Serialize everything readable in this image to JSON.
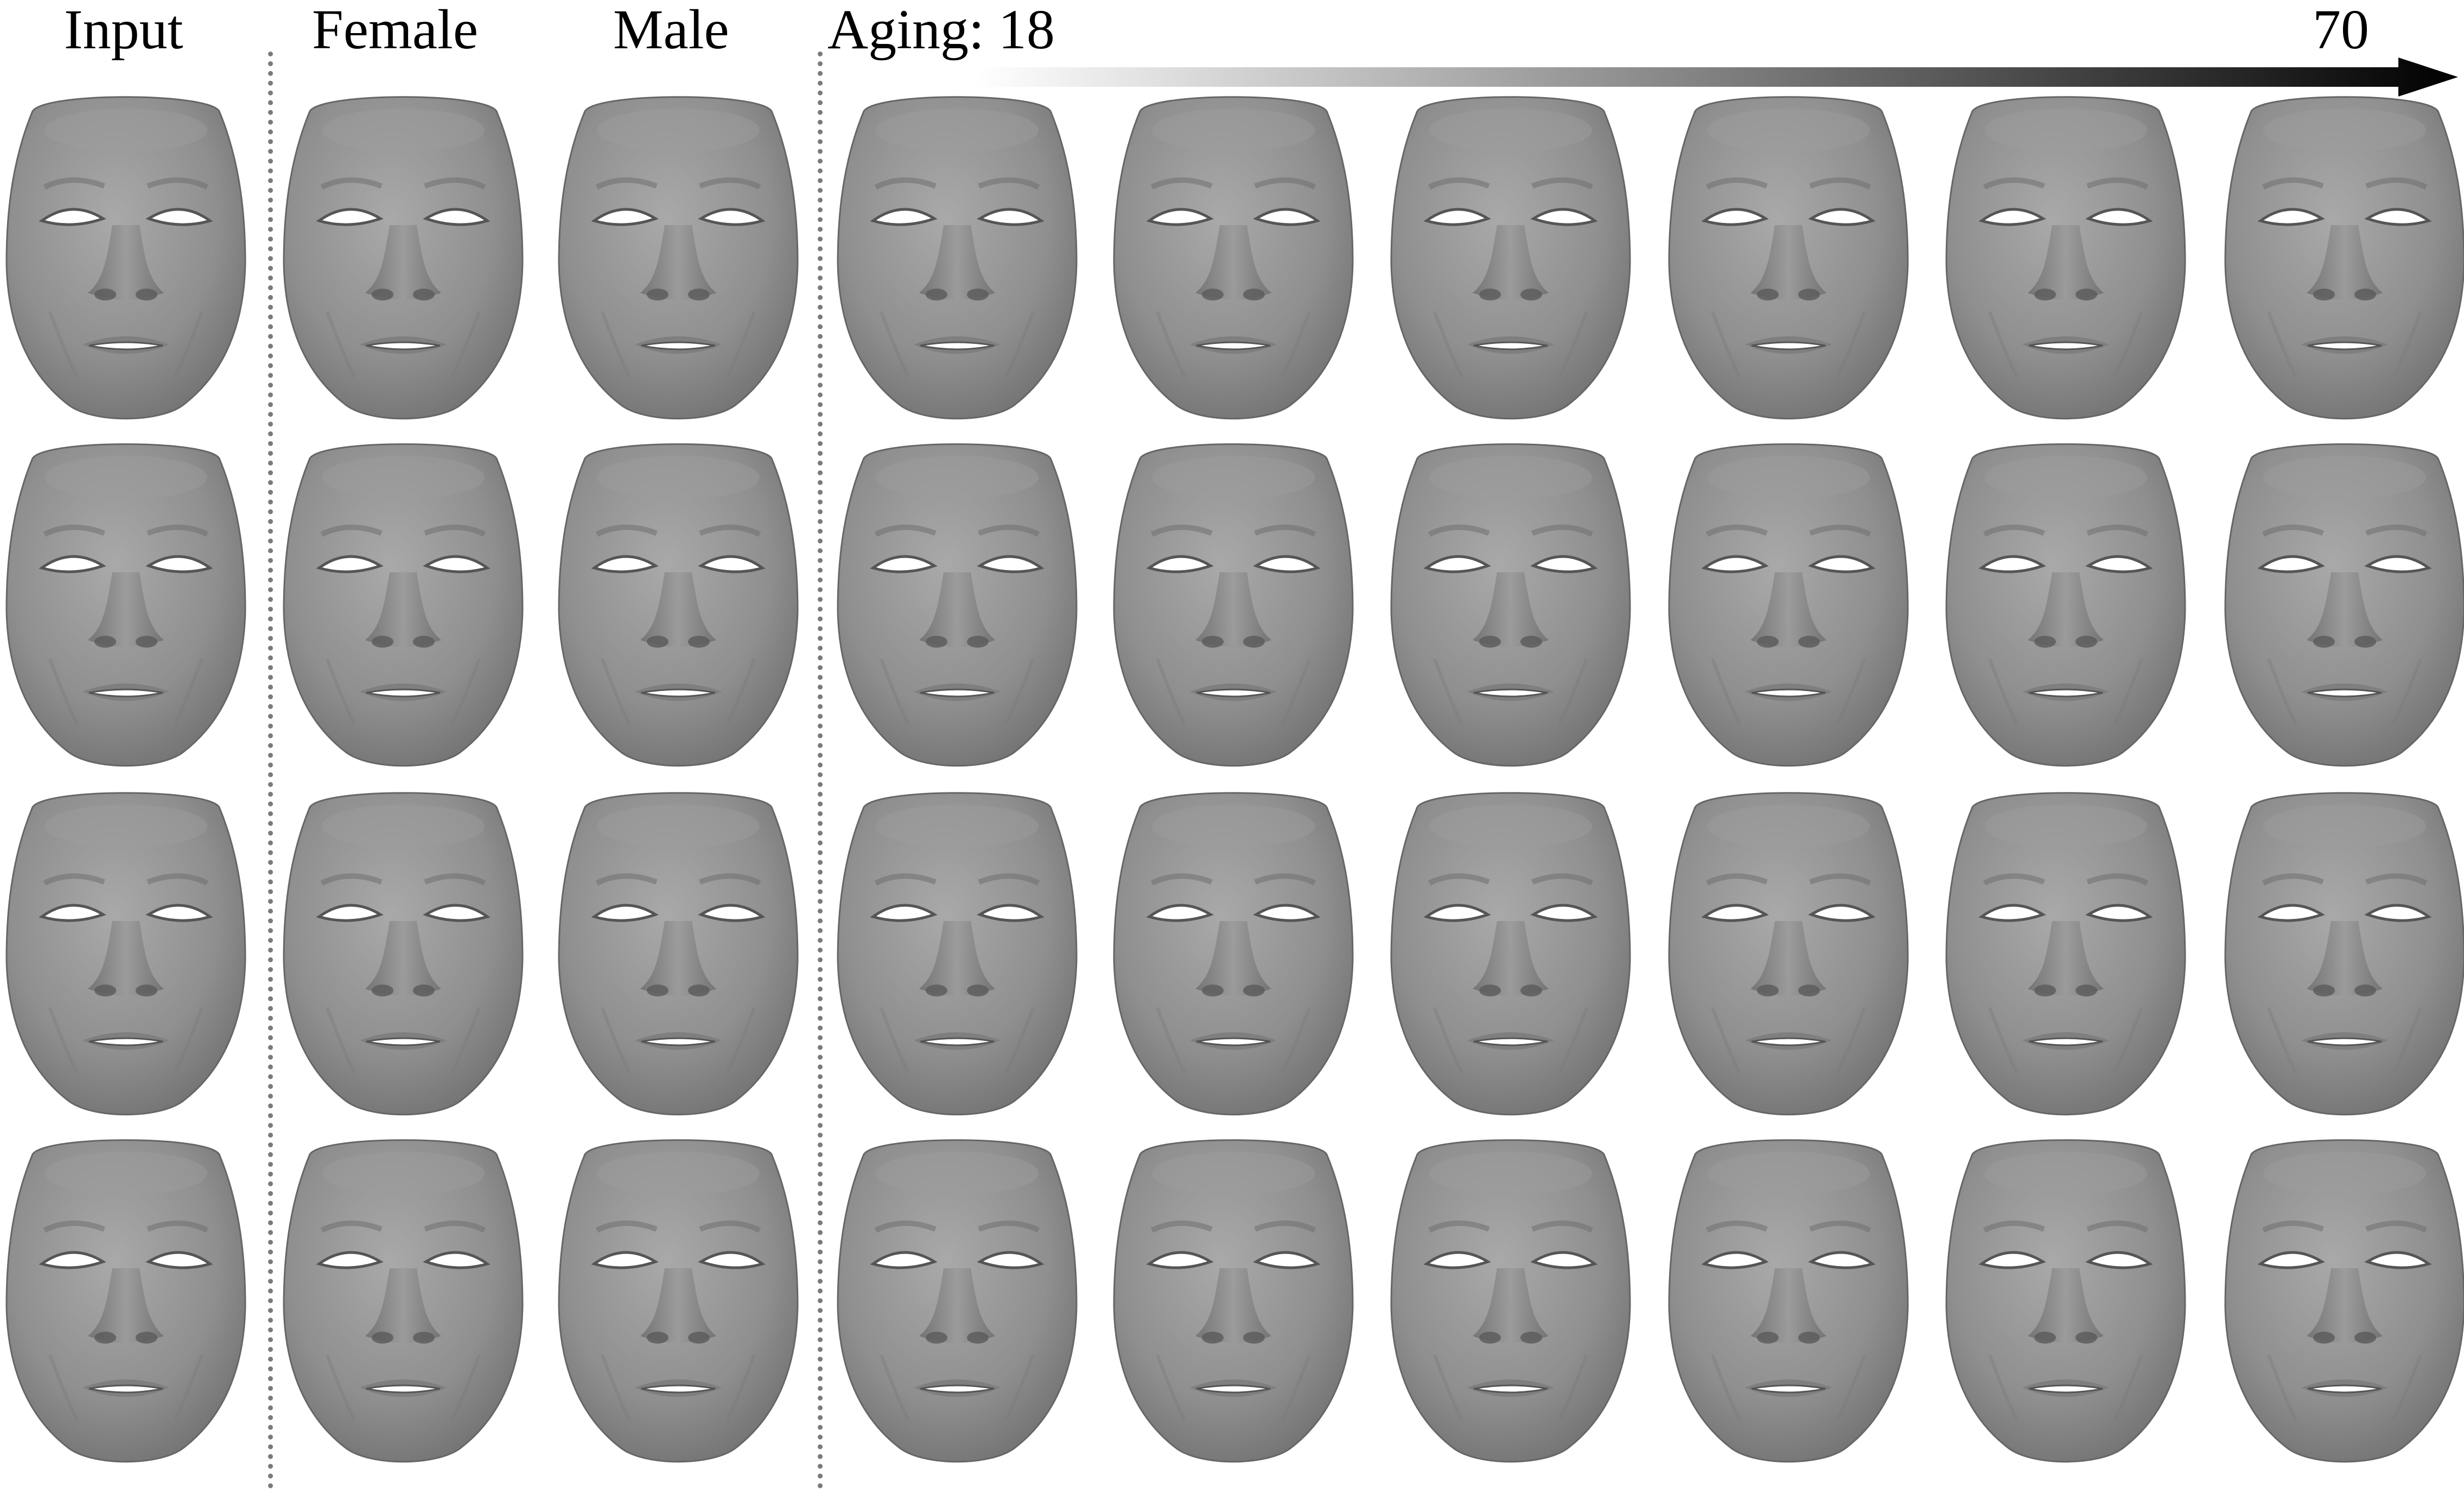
{
  "headers": {
    "input": "Input",
    "female": "Female",
    "male": "Male",
    "aging": "Aging: 18",
    "aging_end": "70"
  },
  "colors": {
    "face_base": "#8c8c8c",
    "face_light": "#b0b0b0",
    "face_dark": "#5a5a5a",
    "separator": "#7a7a7a",
    "arrow_start": "#ffffff",
    "arrow_end": "#000000"
  },
  "grid": {
    "rows": 4,
    "columns": [
      "input",
      "female",
      "male",
      "age-1",
      "age-2",
      "age-3",
      "age-4",
      "age-5",
      "age-6"
    ]
  }
}
